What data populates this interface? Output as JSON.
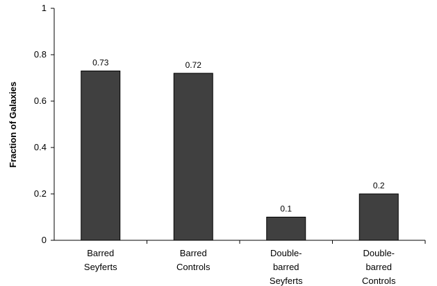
{
  "chart_data": {
    "type": "bar",
    "title": "",
    "xlabel": "",
    "ylabel": "Fraction of Galaxies",
    "ylim": [
      0,
      1
    ],
    "yticks": [
      "0",
      "0.2",
      "0.4",
      "0.6",
      "0.8",
      "1"
    ],
    "grid": false,
    "categories": [
      [
        "Barred",
        "Seyferts"
      ],
      [
        "Barred",
        "Controls"
      ],
      [
        "Double-",
        "barred",
        "Seyferts"
      ],
      [
        "Double-",
        "barred",
        "Controls"
      ]
    ],
    "values": [
      0.73,
      0.72,
      0.1,
      0.2
    ],
    "data_labels": [
      "0.73",
      "0.72",
      "0.1",
      "0.2"
    ],
    "bar_color": "#404040",
    "bar_edge_color": "#000000"
  }
}
